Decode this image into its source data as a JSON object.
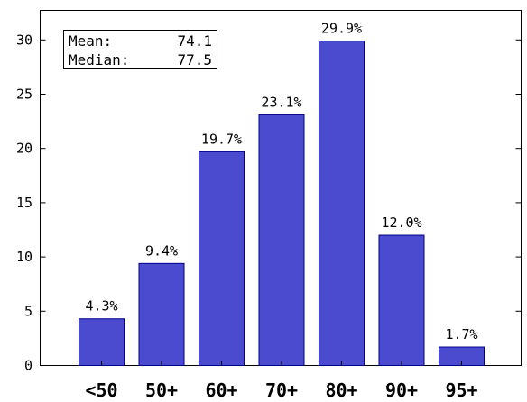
{
  "chart_data": {
    "type": "bar",
    "categories": [
      "<50",
      "50+",
      "60+",
      "70+",
      "80+",
      "90+",
      "95+"
    ],
    "values": [
      4.3,
      9.4,
      19.7,
      23.1,
      29.9,
      12.0,
      1.7
    ],
    "data_labels": [
      "4.3%",
      "9.4%",
      "19.7%",
      "23.1%",
      "29.9%",
      "12.0%",
      "1.7%"
    ],
    "yticks": [
      0,
      5,
      10,
      15,
      20,
      25,
      30
    ],
    "ylim": [
      0,
      33
    ],
    "grid": false,
    "title": "",
    "xlabel": "",
    "ylabel": "",
    "bar_color": "#4b4bcf",
    "bar_edge_color": "#00008b",
    "legend_box": {
      "mean_label": "Mean:",
      "mean_value": "74.1",
      "median_label": "Median:",
      "median_value": "77.5"
    }
  }
}
